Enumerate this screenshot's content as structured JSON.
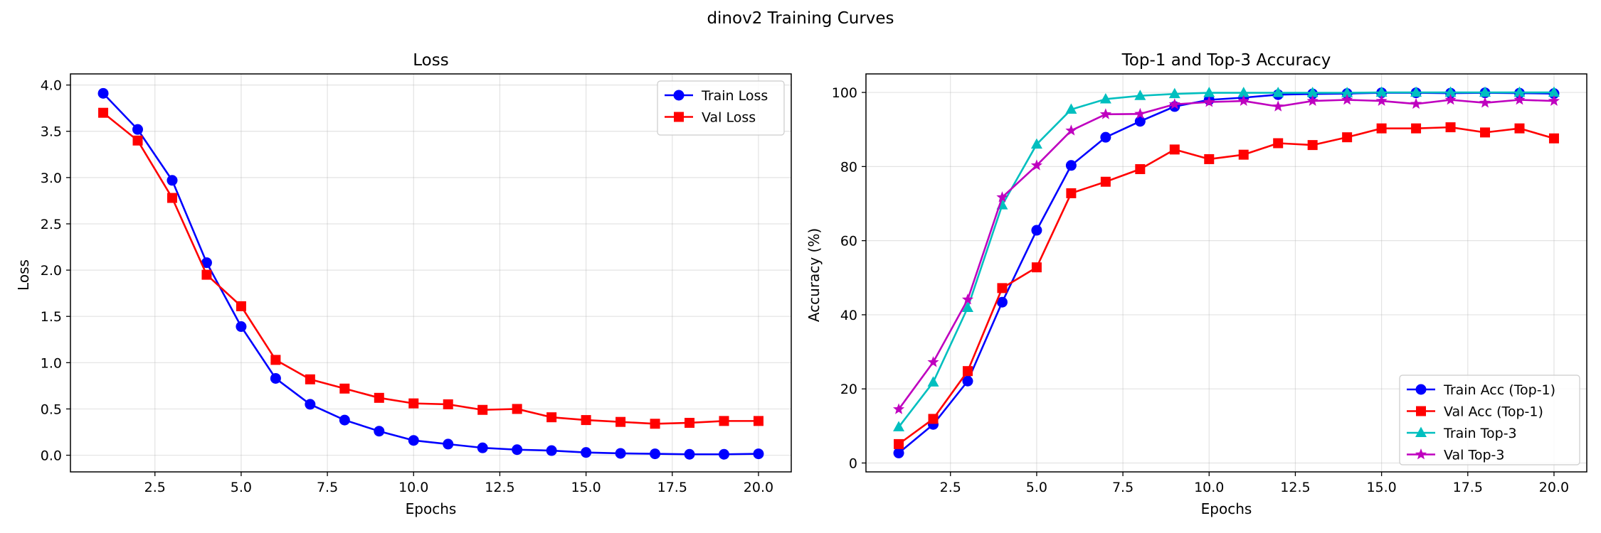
{
  "figure": {
    "suptitle": "dinov2 Training Curves"
  },
  "chart_data": [
    {
      "type": "line",
      "title": "Loss",
      "xlabel": "Epochs",
      "ylabel": "Loss",
      "xlim": [
        0.05,
        20.95
      ],
      "ylim": [
        -0.18,
        4.12
      ],
      "xticks": [
        2.5,
        5.0,
        7.5,
        10.0,
        12.5,
        15.0,
        17.5,
        20.0
      ],
      "xtick_labels": [
        "2.5",
        "5.0",
        "7.5",
        "10.0",
        "12.5",
        "15.0",
        "17.5",
        "20.0"
      ],
      "yticks": [
        0.0,
        0.5,
        1.0,
        1.5,
        2.0,
        2.5,
        3.0,
        3.5,
        4.0
      ],
      "ytick_labels": [
        "0.0",
        "0.5",
        "1.0",
        "1.5",
        "2.0",
        "2.5",
        "3.0",
        "3.5",
        "4.0"
      ],
      "grid": true,
      "legend_position": "top-right",
      "x": [
        1,
        2,
        3,
        4,
        5,
        6,
        7,
        8,
        9,
        10,
        11,
        12,
        13,
        14,
        15,
        16,
        17,
        18,
        19,
        20
      ],
      "series": [
        {
          "name": "Train Loss",
          "color": "#0000ff",
          "marker": "circle",
          "values": [
            3.91,
            3.52,
            2.97,
            2.08,
            1.39,
            0.83,
            0.55,
            0.38,
            0.26,
            0.16,
            0.12,
            0.08,
            0.06,
            0.05,
            0.03,
            0.02,
            0.015,
            0.01,
            0.01,
            0.015
          ]
        },
        {
          "name": "Val Loss",
          "color": "#ff0000",
          "marker": "square",
          "values": [
            3.7,
            3.4,
            2.78,
            1.95,
            1.61,
            1.03,
            0.82,
            0.72,
            0.62,
            0.56,
            0.55,
            0.49,
            0.5,
            0.41,
            0.38,
            0.36,
            0.34,
            0.35,
            0.37,
            0.37
          ]
        }
      ]
    },
    {
      "type": "line",
      "title": "Top-1 and Top-3 Accuracy",
      "xlabel": "Epochs",
      "ylabel": "Accuracy (%)",
      "xlim": [
        0.05,
        20.95
      ],
      "ylim": [
        -2.4,
        105.0
      ],
      "xticks": [
        2.5,
        5.0,
        7.5,
        10.0,
        12.5,
        15.0,
        17.5,
        20.0
      ],
      "xtick_labels": [
        "2.5",
        "5.0",
        "7.5",
        "10.0",
        "12.5",
        "15.0",
        "17.5",
        "20.0"
      ],
      "yticks": [
        0,
        20,
        40,
        60,
        80,
        100
      ],
      "ytick_labels": [
        "0",
        "20",
        "40",
        "60",
        "80",
        "100"
      ],
      "grid": true,
      "legend_position": "bottom-right",
      "x": [
        1,
        2,
        3,
        4,
        5,
        6,
        7,
        8,
        9,
        10,
        11,
        12,
        13,
        14,
        15,
        16,
        17,
        18,
        19,
        20
      ],
      "series": [
        {
          "name": "Train Acc (Top-1)",
          "color": "#0000ff",
          "marker": "circle",
          "values": [
            2.7,
            10.4,
            22.1,
            43.4,
            62.8,
            80.3,
            87.9,
            92.2,
            96.2,
            98.0,
            98.6,
            99.4,
            99.6,
            99.7,
            99.9,
            99.9,
            99.8,
            99.9,
            99.8,
            99.7
          ]
        },
        {
          "name": "Val Acc (Top-1)",
          "color": "#ff0000",
          "marker": "square",
          "values": [
            5.1,
            11.9,
            24.8,
            47.2,
            52.8,
            72.8,
            75.9,
            79.3,
            84.6,
            82.0,
            83.2,
            86.3,
            85.8,
            87.9,
            90.3,
            90.3,
            90.6,
            89.2,
            90.3,
            87.6
          ]
        },
        {
          "name": "Train Top-3",
          "color": "#00bfbf",
          "marker": "triangle",
          "values": [
            9.7,
            21.8,
            41.9,
            69.6,
            86.0,
            95.4,
            98.2,
            99.1,
            99.6,
            99.9,
            99.9,
            99.9,
            99.9,
            99.9,
            100.0,
            100.0,
            100.0,
            100.0,
            100.0,
            100.0
          ]
        },
        {
          "name": "Val Top-3",
          "color": "#bf00bf",
          "marker": "star",
          "values": [
            14.5,
            27.2,
            44.1,
            71.7,
            80.3,
            89.7,
            94.1,
            94.2,
            96.8,
            97.4,
            97.7,
            96.2,
            97.7,
            98.0,
            97.7,
            96.9,
            98.0,
            97.2,
            98.0,
            97.7
          ]
        }
      ]
    }
  ]
}
